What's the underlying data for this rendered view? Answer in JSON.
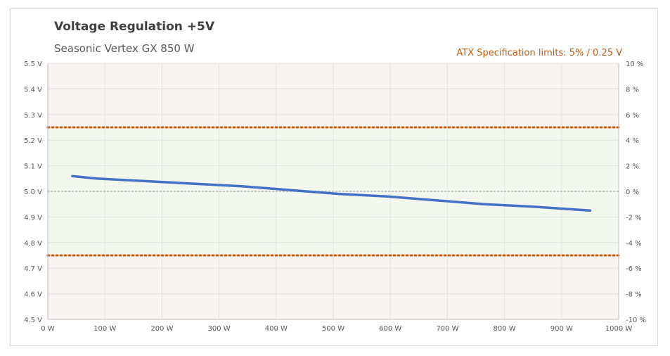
{
  "chart_data": {
    "type": "line",
    "title": "Voltage Regulation +5V",
    "subtitle": "Seasonic Vertex GX 850 W",
    "annotation": "ATX Specification limits: 5% / 0.25 V",
    "xlabel": "",
    "ylabel": "",
    "xlim": [
      0,
      1000
    ],
    "ylim": [
      4.5,
      5.5
    ],
    "y2lim": [
      -10,
      10
    ],
    "x_ticks": [
      "0 W",
      "100 W",
      "200 W",
      "300 W",
      "400 W",
      "500 W",
      "600 W",
      "700 W",
      "800 W",
      "900 W",
      "1000 W"
    ],
    "y_ticks": [
      "4.5 V",
      "4.6 V",
      "4.7 V",
      "4.8 V",
      "4.9 V",
      "5.0 V",
      "5.1 V",
      "5.2 V",
      "5.3 V",
      "5.4 V",
      "5.5 V"
    ],
    "y2_ticks": [
      "-10 %",
      "-8 %",
      "-6 %",
      "-4 %",
      "-2 %",
      "0 %",
      "2 %",
      "4 %",
      "6 %",
      "8 %",
      "10 %"
    ],
    "limits": {
      "upper": 5.25,
      "nominal": 5.0,
      "lower": 4.75
    },
    "series": [
      {
        "x": [
          43,
          85,
          170,
          255,
          340,
          425,
          510,
          595,
          680,
          765,
          850,
          950
        ],
        "y": [
          5.06,
          5.05,
          5.04,
          5.03,
          5.02,
          5.005,
          4.99,
          4.98,
          4.965,
          4.95,
          4.94,
          4.925
        ]
      }
    ],
    "grid": true,
    "colors": {
      "line": "#4472c4",
      "limit": "#c55a11",
      "nominal": "#bfbfbf",
      "band_in": "#f3f8ef",
      "band_out": "#f9f3f2",
      "grid": "#e3e3e3",
      "axis": "#bfbfbf"
    }
  }
}
